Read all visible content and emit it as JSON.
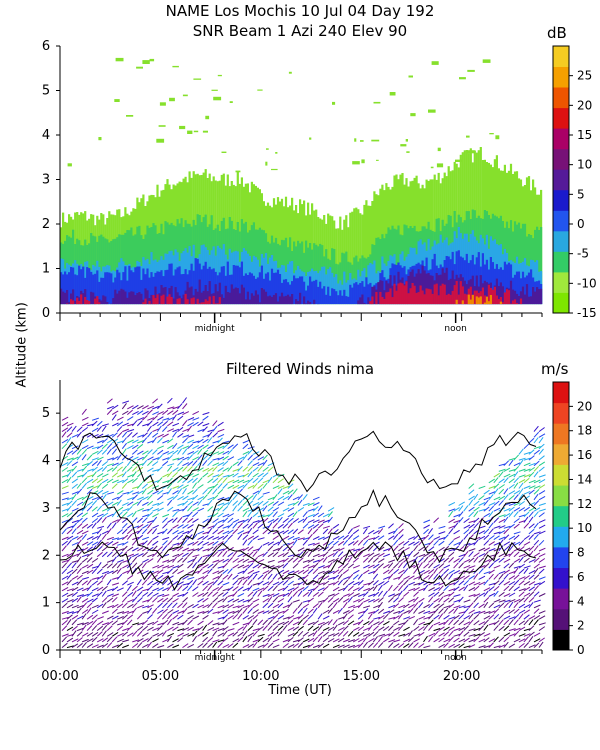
{
  "header": {
    "title_line1": "NAME Los Mochis    10 Jul 04 Day 192",
    "title_line2": "SNR Beam 1 Azi 240 Elev 90"
  },
  "chart_data": [
    {
      "type": "heatmap",
      "title": "SNR Beam 1 Azi 240 Elev 90",
      "xlabel": "Time (UT)",
      "ylabel": "Altitude (km)",
      "xlim": [
        0,
        24
      ],
      "ylim": [
        0,
        6
      ],
      "yticks": [
        "0",
        "1",
        "2",
        "3",
        "4",
        "5",
        "6"
      ],
      "x_annotations": [
        {
          "label": "midnight",
          "x": 7.7
        },
        {
          "label": "noon",
          "x": 19.7
        }
      ],
      "colorbar": {
        "unit": "dB",
        "range": [
          -15,
          30
        ],
        "ticks": [
          "-15",
          "-10",
          "-5",
          "0",
          "5",
          "10",
          "15",
          "20",
          "25"
        ],
        "colors": [
          "#7ee600",
          "#a0e83c",
          "#33cc66",
          "#29a8e0",
          "#2255ee",
          "#1a1acc",
          "#551a99",
          "#771177",
          "#aa0066",
          "#dd1111",
          "#ee5500",
          "#f5a000",
          "#f5cc22"
        ]
      },
      "layers": [
        {
          "name": "weak-echo",
          "color": "#86e02c",
          "top_km_by_hour": [
            2.1,
            2.2,
            2.1,
            2.2,
            2.5,
            2.8,
            3.0,
            3.1,
            3.0,
            3.0,
            2.6,
            2.5,
            2.4,
            2.2,
            2.0,
            2.3,
            2.8,
            3.0,
            2.9,
            3.1,
            3.5,
            3.6,
            3.3,
            3.0
          ]
        },
        {
          "name": "green-echo",
          "color": "#3ccc5c",
          "top_km_by_hour": [
            1.7,
            1.7,
            1.6,
            1.7,
            1.8,
            1.9,
            2.0,
            2.1,
            2.0,
            2.0,
            1.8,
            1.6,
            1.5,
            1.4,
            1.2,
            1.3,
            1.7,
            1.9,
            2.0,
            2.0,
            2.2,
            2.2,
            2.0,
            1.9
          ]
        },
        {
          "name": "cyan-echo",
          "color": "#2aa7e6",
          "top_km_by_hour": [
            1.1,
            1.1,
            1.0,
            1.1,
            1.2,
            1.3,
            1.3,
            1.4,
            1.4,
            1.3,
            1.2,
            1.1,
            1.0,
            0.9,
            0.8,
            0.9,
            1.1,
            1.3,
            1.5,
            1.6,
            1.8,
            1.7,
            1.4,
            1.2
          ]
        },
        {
          "name": "blue-echo",
          "color": "#1f3ee6",
          "top_km_by_hour": [
            0.9,
            0.9,
            0.8,
            0.9,
            0.9,
            1.0,
            1.0,
            1.1,
            1.0,
            1.0,
            0.9,
            0.8,
            0.7,
            0.6,
            0.5,
            0.6,
            0.9,
            1.0,
            1.1,
            1.2,
            1.3,
            1.2,
            1.0,
            0.9
          ]
        },
        {
          "name": "purple-echo",
          "color": "#4b1a99",
          "top_km_by_hour": [
            0.4,
            0.4,
            0.3,
            0.4,
            0.4,
            0.5,
            0.5,
            0.6,
            0.5,
            0.5,
            0.4,
            0.3,
            0.3,
            0.2,
            0.1,
            0.3,
            0.6,
            0.8,
            0.9,
            0.9,
            0.8,
            0.7,
            0.6,
            0.5
          ]
        },
        {
          "name": "strong-echo",
          "color": "#cc1144",
          "top_km_by_hour": [
            0.2,
            0.25,
            0.2,
            0.2,
            0.2,
            0.3,
            0.3,
            0.3,
            0.2,
            0.2,
            0.2,
            0.1,
            0.1,
            0.0,
            0.0,
            0.1,
            0.4,
            0.6,
            0.5,
            0.5,
            0.6,
            0.5,
            0.4,
            0.2
          ]
        },
        {
          "name": "very-strong-echo",
          "color": "#f08800",
          "top_km_by_hour": [
            0.1,
            0.1,
            0.0,
            0.0,
            0.0,
            0.1,
            0.1,
            0.0,
            0.0,
            0.0,
            0.0,
            0.0,
            0.0,
            0.0,
            0.0,
            0.0,
            0.15,
            0.2,
            0.1,
            0.1,
            0.25,
            0.3,
            0.2,
            0.0
          ]
        }
      ]
    },
    {
      "type": "scatter",
      "title": "Filtered Winds nima",
      "xlabel": "Time (UT)",
      "ylabel": "Altitude (km)",
      "xlim": [
        0,
        24
      ],
      "ylim": [
        0,
        5.7
      ],
      "xticks": [
        "00:00",
        "05:00",
        "10:00",
        "15:00",
        "20:00"
      ],
      "yticks": [
        "0",
        "1",
        "2",
        "3",
        "4",
        "5"
      ],
      "x_annotations": [
        {
          "label": "midnight",
          "x": 7.7
        },
        {
          "label": "noon",
          "x": 19.7
        }
      ],
      "colorbar": {
        "unit": "m/s",
        "range": [
          0,
          22
        ],
        "ticks": [
          "0",
          "2",
          "4",
          "6",
          "8",
          "10",
          "12",
          "14",
          "16",
          "18",
          "20"
        ],
        "colors": [
          "#000000",
          "#551177",
          "#771199",
          "#3311cc",
          "#2244ee",
          "#22aaee",
          "#22cc88",
          "#88dd44",
          "#ccdd33",
          "#eeaa33",
          "#ee7722",
          "#ee4422",
          "#dd1111"
        ]
      },
      "speed_by_altitude_band_ms": [
        3,
        4,
        5,
        4,
        6,
        9,
        11,
        9,
        6,
        5,
        4
      ],
      "contour_speed_ms": 5
    }
  ]
}
